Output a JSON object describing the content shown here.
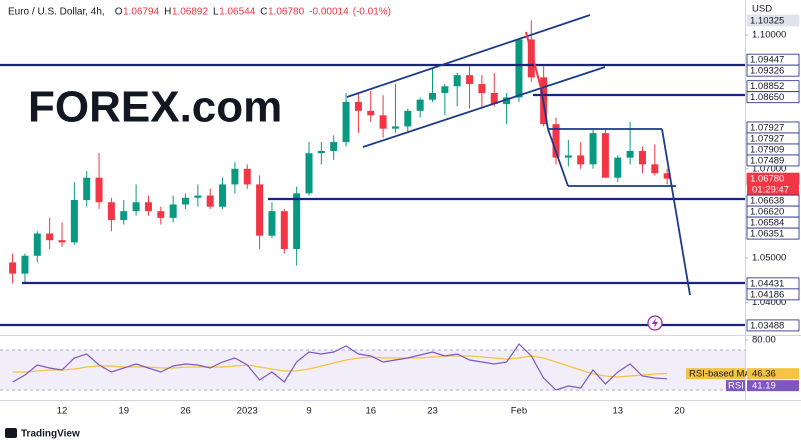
{
  "chart_data": {
    "type": "candlestick",
    "header": {
      "title": "Euro / U.S. Dollar, 4h,",
      "ohlc": [
        {
          "key": "O",
          "value": 1.06794
        },
        {
          "key": "H",
          "value": 1.06892
        },
        {
          "key": "L",
          "value": 1.06544
        },
        {
          "key": "C",
          "value": 1.0678,
          "label": "1.06780"
        }
      ],
      "change": -0.00014,
      "change_pct": "(-0.01%)"
    },
    "currency": "USD",
    "logo": "FOREX.com",
    "footer": "TradingView",
    "categories": [
      null,
      null,
      null,
      null,
      "12",
      null,
      null,
      null,
      null,
      "19",
      null,
      null,
      null,
      null,
      "26",
      null,
      null,
      null,
      null,
      "2023",
      null,
      null,
      null,
      null,
      "9",
      null,
      null,
      null,
      null,
      "16",
      null,
      null,
      null,
      null,
      "23",
      null,
      null,
      null,
      null,
      null,
      null,
      "Feb",
      null,
      null,
      null,
      null,
      null,
      null,
      null,
      "13",
      null,
      null,
      null,
      null,
      "20"
    ],
    "open": [
      1.049,
      1.0465,
      1.0505,
      1.0555,
      1.054,
      1.0535,
      1.063,
      1.068,
      1.0625,
      1.0585,
      1.0605,
      1.0625,
      1.0605,
      1.059,
      1.062,
      1.0635,
      1.064,
      1.0615,
      1.0665,
      1.07,
      1.0665,
      1.055,
      1.0605,
      1.052,
      1.0645,
      1.0735,
      1.074,
      1.076,
      1.085,
      1.083,
      1.082,
      1.079,
      1.0795,
      1.083,
      1.0855,
      1.087,
      1.0885,
      1.091,
      1.089,
      1.087,
      1.0845,
      1.086,
      1.099,
      1.0905,
      1.08,
      1.0725,
      1.073,
      1.071,
      1.078,
      1.068,
      1.0725,
      1.074,
      1.071,
      1.069,
      null
    ],
    "high": [
      1.051,
      1.051,
      1.056,
      1.059,
      1.058,
      1.067,
      1.0695,
      1.0736,
      1.0635,
      1.063,
      1.0665,
      1.064,
      1.0615,
      1.064,
      1.0645,
      1.0665,
      1.0655,
      1.068,
      1.0715,
      1.071,
      1.0685,
      1.0625,
      1.061,
      1.066,
      1.076,
      1.076,
      1.0775,
      1.087,
      1.087,
      1.0875,
      1.0865,
      1.089,
      1.0835,
      1.086,
      1.0925,
      1.089,
      1.0915,
      1.093,
      1.091,
      1.0915,
      1.087,
      1.099,
      1.1033,
      1.093,
      1.0815,
      1.0765,
      1.076,
      1.079,
      1.079,
      1.073,
      1.0805,
      1.075,
      1.0755,
      1.07,
      null
    ],
    "low": [
      1.0443,
      1.0445,
      1.049,
      1.052,
      1.0525,
      1.053,
      1.0615,
      1.061,
      1.056,
      1.0575,
      1.0595,
      1.0595,
      1.0575,
      1.058,
      1.061,
      1.0615,
      1.061,
      1.061,
      1.0645,
      1.0655,
      1.052,
      1.0545,
      1.051,
      1.0483,
      1.064,
      1.071,
      1.072,
      1.075,
      1.078,
      1.0805,
      1.077,
      1.078,
      1.078,
      1.0815,
      1.085,
      1.082,
      1.084,
      1.0835,
      1.0835,
      1.084,
      1.08,
      1.085,
      1.0895,
      1.0795,
      1.071,
      1.0705,
      1.07,
      1.07,
      1.068,
      1.067,
      1.071,
      1.069,
      1.0685,
      1.0665,
      null
    ],
    "close": [
      1.0465,
      1.0505,
      1.0555,
      1.054,
      1.0535,
      1.063,
      1.068,
      1.0625,
      1.0585,
      1.0605,
      1.0625,
      1.0605,
      1.059,
      1.062,
      1.0635,
      1.064,
      1.0615,
      1.0665,
      1.07,
      1.0665,
      1.055,
      1.0605,
      1.052,
      1.0645,
      1.0735,
      1.074,
      1.076,
      1.085,
      1.083,
      1.082,
      1.079,
      1.0795,
      1.083,
      1.0855,
      1.087,
      1.0885,
      1.091,
      1.089,
      1.087,
      1.0845,
      1.086,
      1.099,
      1.0905,
      1.08,
      1.0725,
      1.073,
      1.071,
      1.078,
      1.068,
      1.0725,
      1.074,
      1.071,
      1.069,
      1.0678,
      null
    ],
    "up_color": "#089981",
    "down_color": "#f23645",
    "ylim": [
      1.03206,
      1.10785
    ],
    "yticks": [
      {
        "value": 1.1,
        "label": "1.10000"
      },
      {
        "value": 1.07,
        "label": "1.07000"
      },
      {
        "value": 1.05,
        "label": "1.05000"
      },
      {
        "value": 1.04,
        "label": "1.04000"
      }
    ],
    "price_labels": [
      {
        "value": 1.10325,
        "kind": "high"
      },
      {
        "value": 1.09447
      },
      {
        "value": 1.09326
      },
      {
        "value": 1.08852
      },
      {
        "value": 1.0865,
        "label": "1.08650"
      },
      {
        "value": 1.07927
      },
      {
        "value": 1.07927
      },
      {
        "value": 1.07909
      },
      {
        "value": 1.07489
      },
      {
        "value": 1.0678,
        "label": "1.06780",
        "kind": "last"
      },
      {
        "value": 1.06638
      },
      {
        "value": 1.0662,
        "label": "1.06620"
      },
      {
        "value": 1.06584
      },
      {
        "value": 1.06351
      },
      {
        "value": 1.04431
      },
      {
        "value": 1.04186
      },
      {
        "value": 1.03488
      }
    ],
    "countdown": "01:29:47",
    "rsi": {
      "ylim": [
        20,
        85
      ],
      "yticks": [
        {
          "value": 80,
          "label": "80.00"
        }
      ],
      "color": "#7e57c2",
      "ma_color": "#f5c342",
      "label": "RSI",
      "value": 41.19,
      "ma_label": "RSI-based MA",
      "ma_value": 46.36,
      "values": [
        38,
        45,
        55,
        52,
        50,
        62,
        66,
        55,
        48,
        52,
        56,
        52,
        48,
        54,
        56,
        55,
        52,
        58,
        62,
        55,
        40,
        48,
        38,
        58,
        68,
        66,
        68,
        74,
        66,
        64,
        58,
        60,
        62,
        65,
        68,
        64,
        66,
        60,
        58,
        56,
        58,
        76,
        64,
        42,
        30,
        34,
        32,
        50,
        36,
        48,
        56,
        44,
        42,
        41.19,
        null
      ],
      "ma_values": [
        48,
        48,
        49,
        50,
        50,
        51,
        53,
        54,
        54,
        53,
        53,
        53,
        52,
        52,
        53,
        53,
        53,
        53,
        54,
        55,
        53,
        51,
        49,
        49,
        51,
        54,
        57,
        60,
        62,
        63,
        62,
        62,
        62,
        62,
        63,
        64,
        64,
        64,
        63,
        62,
        61,
        62,
        64,
        62,
        58,
        54,
        50,
        46,
        44,
        43,
        44,
        45,
        46,
        46.36,
        null
      ]
    }
  }
}
